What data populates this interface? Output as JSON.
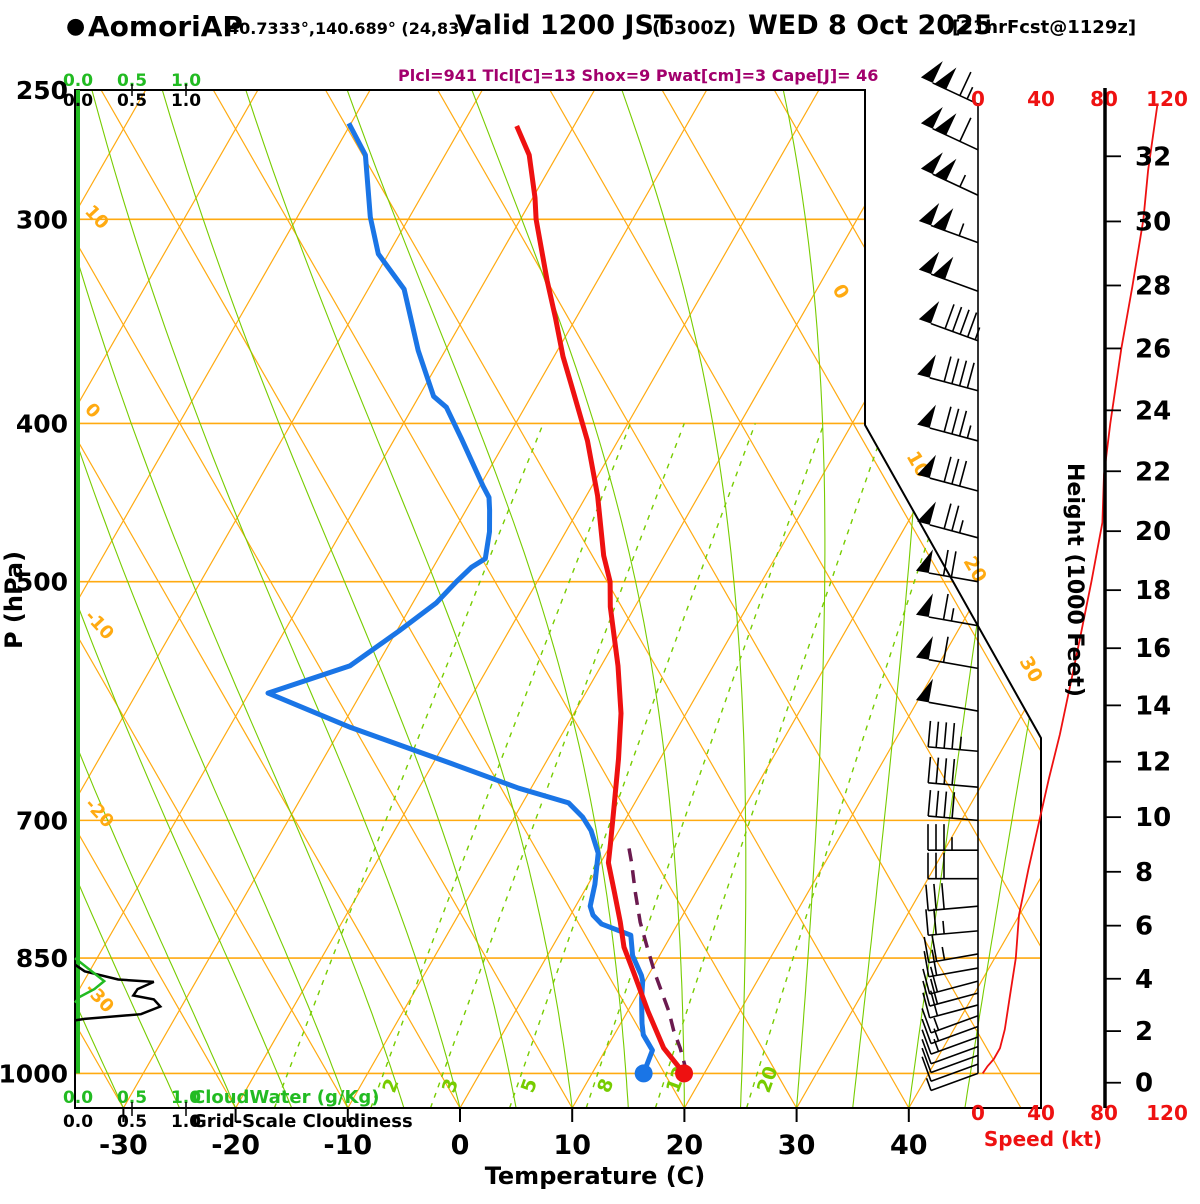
{
  "title": {
    "bullet": "●",
    "station": "AomoriAP",
    "coords": "40.7333°,140.689° (24,83)",
    "valid": "Valid 1200 JST",
    "valid_z": "(0300Z)",
    "valid_date": "WED 8 Oct 2025",
    "fcst_tag": "[21hrFcst@1129z]",
    "params_line": "Plcl=941 Tlcl[C]=13 Shox=9 Pwat[cm]=3 Cape[J]= 46"
  },
  "axes": {
    "pressure_label": "P (hPa)",
    "temperature_label": "Temperature (C)",
    "height_label": "Height (1000 Feet)",
    "speed_label": "Speed (kt)",
    "cloudwater_label": "CloudWater (g/Kg)",
    "cloudiness_label": "Grid-Scale Cloudiness",
    "pressure_ticks": [
      250,
      300,
      400,
      500,
      700,
      850,
      1000
    ],
    "temperature_ticks": [
      -30,
      -20,
      -10,
      0,
      10,
      20,
      30,
      40
    ],
    "height_ticks": [
      0,
      2,
      4,
      6,
      8,
      10,
      12,
      14,
      16,
      18,
      20,
      22,
      24,
      26,
      28,
      30,
      32
    ],
    "speed_ticks": [
      0,
      40,
      80,
      120
    ],
    "cloud_scale_ticks": [
      "0.0",
      "0.5",
      "1.0"
    ]
  },
  "colors": {
    "grid_orange": "#ffaa11",
    "grid_green": "#77cc00",
    "temperature_red": "#ee1111",
    "dewpoint_blue": "#1a75e6",
    "parcel_purple": "#6b1a4f",
    "speed_red": "#ee1111",
    "param_magenta": "#a2006d",
    "cloud_black": "#000000",
    "cloudwater_green": "#22bb22",
    "axis_green": "#22bb22"
  },
  "chart_data": {
    "type": "skewt-log-p sounding",
    "pressure_range_hpa": [
      250,
      1050
    ],
    "temperature_axis_range_c": [
      -40,
      45
    ],
    "skew": "isotherms lean right with height; dry adiabats mirror left",
    "isotherm_inline_labels": [
      0,
      10,
      20,
      30
    ],
    "dry_adiabat_edge_labels": [
      10,
      0,
      -10,
      -20,
      -30
    ],
    "mixing_ratio_lines_gkg": [
      1,
      2,
      3,
      5,
      8,
      12,
      20
    ],
    "mixing_ratio_labels_gkg": [
      2,
      3,
      5,
      8,
      12,
      20
    ],
    "temperature_profile": [
      [
        263,
        -45.1
      ],
      [
        274,
        -42.5
      ],
      [
        291,
        -39.8
      ],
      [
        300,
        -38.6
      ],
      [
        327,
        -34.5
      ],
      [
        345,
        -31.8
      ],
      [
        364,
        -29.2
      ],
      [
        381,
        -26.7
      ],
      [
        410,
        -22.7
      ],
      [
        443,
        -19.0
      ],
      [
        482,
        -15.4
      ],
      [
        500,
        -13.5
      ],
      [
        518,
        -12.2
      ],
      [
        563,
        -8.5
      ],
      [
        602,
        -5.8
      ],
      [
        642,
        -3.7
      ],
      [
        688,
        -1.6
      ],
      [
        723,
        -0.1
      ],
      [
        743,
        0.7
      ],
      [
        774,
        2.7
      ],
      [
        808,
        4.8
      ],
      [
        837,
        6.4
      ],
      [
        868,
        8.6
      ],
      [
        916,
        11.8
      ],
      [
        965,
        15.1
      ],
      [
        1000,
        18.2
      ]
    ],
    "dewpoint_profile": [
      [
        262,
        -60.2
      ],
      [
        274,
        -57.1
      ],
      [
        299,
        -53.5
      ],
      [
        315,
        -50.9
      ],
      [
        331,
        -46.8
      ],
      [
        361,
        -42.4
      ],
      [
        385,
        -38.7
      ],
      [
        391,
        -37.0
      ],
      [
        409,
        -34.0
      ],
      [
        437,
        -29.7
      ],
      [
        444,
        -28.6
      ],
      [
        452,
        -27.9
      ],
      [
        466,
        -26.8
      ],
      [
        484,
        -25.8
      ],
      [
        490,
        -26.6
      ],
      [
        500,
        -27.2
      ],
      [
        515,
        -27.9
      ],
      [
        536,
        -29.8
      ],
      [
        563,
        -32.4
      ],
      [
        585,
        -38.3
      ],
      [
        614,
        -29.2
      ],
      [
        646,
        -18.4
      ],
      [
        669,
        -11.1
      ],
      [
        683,
        -5.9
      ],
      [
        697,
        -3.9
      ],
      [
        710,
        -2.5
      ],
      [
        733,
        -0.7
      ],
      [
        766,
        0.6
      ],
      [
        790,
        1.3
      ],
      [
        800,
        2.0
      ],
      [
        810,
        3.2
      ],
      [
        823,
        6.4
      ],
      [
        847,
        7.6
      ],
      [
        871,
        9.4
      ],
      [
        878,
        9.8
      ],
      [
        900,
        10.6
      ],
      [
        932,
        11.9
      ],
      [
        947,
        12.6
      ],
      [
        968,
        14.2
      ],
      [
        1000,
        14.6
      ]
    ],
    "parcel_profile": [
      [
        1000,
        18.2
      ],
      [
        965,
        16.3
      ],
      [
        941,
        14.8
      ],
      [
        916,
        13.4
      ],
      [
        868,
        10.2
      ],
      [
        837,
        8.2
      ],
      [
        808,
        6.3
      ],
      [
        774,
        4.3
      ],
      [
        743,
        2.5
      ],
      [
        723,
        1.2
      ]
    ],
    "wind_speed_profile_kt": [
      [
        255,
        114
      ],
      [
        280,
        108
      ],
      [
        300,
        105
      ],
      [
        330,
        98
      ],
      [
        360,
        91
      ],
      [
        400,
        84
      ],
      [
        430,
        80
      ],
      [
        460,
        79
      ],
      [
        500,
        72
      ],
      [
        540,
        65
      ],
      [
        570,
        60
      ],
      [
        620,
        52
      ],
      [
        660,
        45
      ],
      [
        700,
        39
      ],
      [
        750,
        32
      ],
      [
        800,
        26
      ],
      [
        850,
        24
      ],
      [
        900,
        20
      ],
      [
        940,
        17
      ],
      [
        965,
        14
      ],
      [
        980,
        10
      ],
      [
        990,
        6
      ],
      [
        1000,
        3
      ]
    ],
    "wind_barbs": [
      [
        255,
        115,
        295
      ],
      [
        272,
        110,
        295
      ],
      [
        290,
        105,
        295
      ],
      [
        310,
        105,
        290
      ],
      [
        332,
        100,
        290
      ],
      [
        356,
        95,
        290
      ],
      [
        382,
        90,
        285
      ],
      [
        410,
        85,
        285
      ],
      [
        440,
        80,
        285
      ],
      [
        470,
        75,
        285
      ],
      [
        500,
        70,
        280
      ],
      [
        532,
        65,
        280
      ],
      [
        565,
        60,
        280
      ],
      [
        600,
        50,
        280
      ],
      [
        635,
        45,
        275
      ],
      [
        668,
        40,
        275
      ],
      [
        700,
        40,
        275
      ],
      [
        730,
        35,
        270
      ],
      [
        760,
        30,
        270
      ],
      [
        790,
        28,
        265
      ],
      [
        818,
        25,
        265
      ],
      [
        845,
        25,
        260
      ],
      [
        862,
        20,
        260
      ],
      [
        878,
        20,
        255
      ],
      [
        893,
        18,
        255
      ],
      [
        908,
        18,
        255
      ],
      [
        922,
        15,
        250
      ],
      [
        936,
        15,
        250
      ],
      [
        950,
        15,
        250
      ],
      [
        963,
        12,
        250
      ],
      [
        975,
        10,
        250
      ],
      [
        987,
        8,
        250
      ],
      [
        1000,
        5,
        250
      ]
    ],
    "grid_scale_cloudiness_profile": [
      [
        858,
        0
      ],
      [
        866,
        0.09
      ],
      [
        876,
        0.4
      ],
      [
        879,
        0.73
      ],
      [
        888,
        0.58
      ],
      [
        896,
        0.54
      ],
      [
        901,
        0.73
      ],
      [
        910,
        0.79
      ],
      [
        920,
        0.61
      ],
      [
        926,
        0.09
      ],
      [
        928,
        0
      ]
    ],
    "cloudwater_profile_gkg": [
      [
        850,
        0
      ],
      [
        878,
        0.27
      ],
      [
        888,
        0.18
      ],
      [
        898,
        0.04
      ],
      [
        905,
        0
      ]
    ]
  }
}
